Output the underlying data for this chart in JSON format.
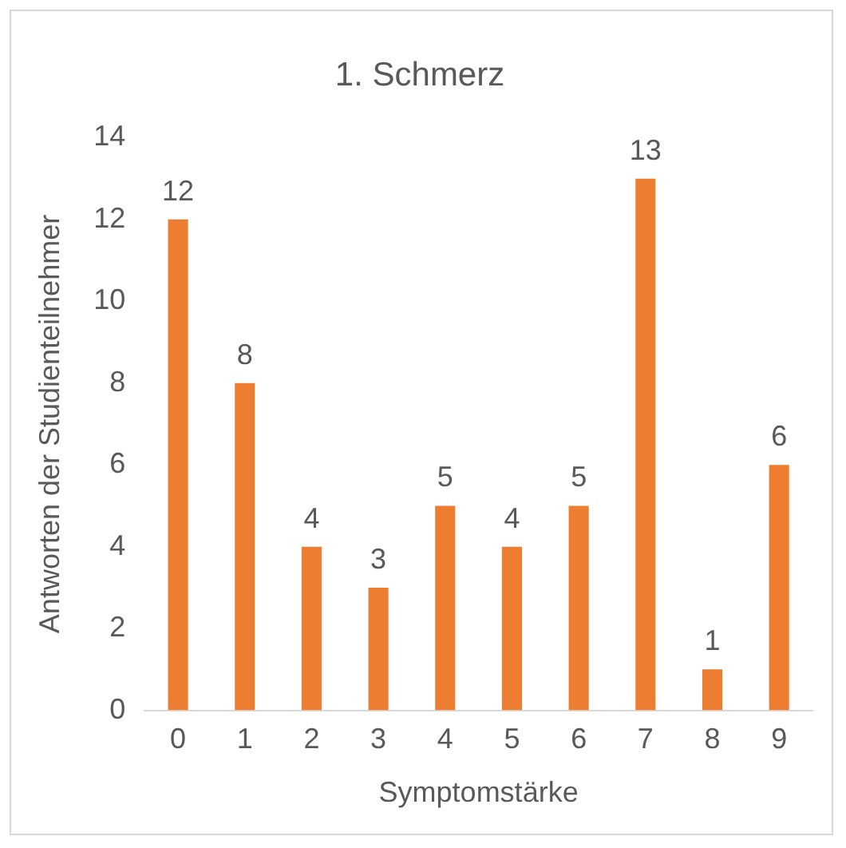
{
  "chart_data": {
    "type": "bar",
    "title": "1. Schmerz",
    "xlabel": "Symptomstärke",
    "ylabel": "Antworten der Studienteilnehmer",
    "categories": [
      "0",
      "1",
      "2",
      "3",
      "4",
      "5",
      "6",
      "7",
      "8",
      "9"
    ],
    "values": [
      12,
      8,
      4,
      3,
      5,
      4,
      5,
      13,
      1,
      6
    ],
    "color": "#ed7d31",
    "ylim": [
      0,
      14
    ],
    "yticks": [
      0,
      2,
      4,
      6,
      8,
      10,
      12,
      14
    ],
    "grid": false,
    "data_labels": true,
    "legend": false
  }
}
